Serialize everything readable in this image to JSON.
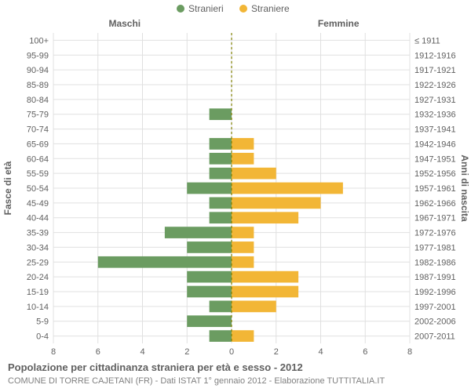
{
  "legend": {
    "male_label": "Stranieri",
    "female_label": "Straniere",
    "male_color": "#6b9c61",
    "female_color": "#f2b636"
  },
  "section_titles": {
    "left": "Maschi",
    "right": "Femmine"
  },
  "y_axis_left_title": "Fasce di età",
  "y_axis_right_title": "Anni di nascita",
  "caption_title": "Popolazione per cittadinanza straniera per età e sesso - 2012",
  "caption_sub": "COMUNE DI TORRE CAJETANI (FR) - Dati ISTAT 1° gennaio 2012 - Elaborazione TUTTITALIA.IT",
  "x_ticks": [
    8,
    6,
    4,
    2,
    0,
    2,
    4,
    6,
    8
  ],
  "x_max": 8,
  "chart": {
    "type": "population-pyramid",
    "background_color": "#ffffff",
    "grid_color": "#e0e0e0",
    "center_line_color": "#808000",
    "center_line_dash": "3,3",
    "bar_height_ratio": 0.78,
    "male_color": "#6b9c61",
    "female_color": "#f2b636",
    "rows": [
      {
        "age": "100+",
        "birth": "≤ 1911",
        "m": 0,
        "f": 0
      },
      {
        "age": "95-99",
        "birth": "1912-1916",
        "m": 0,
        "f": 0
      },
      {
        "age": "90-94",
        "birth": "1917-1921",
        "m": 0,
        "f": 0
      },
      {
        "age": "85-89",
        "birth": "1922-1926",
        "m": 0,
        "f": 0
      },
      {
        "age": "80-84",
        "birth": "1927-1931",
        "m": 0,
        "f": 0
      },
      {
        "age": "75-79",
        "birth": "1932-1936",
        "m": 1,
        "f": 0
      },
      {
        "age": "70-74",
        "birth": "1937-1941",
        "m": 0,
        "f": 0
      },
      {
        "age": "65-69",
        "birth": "1942-1946",
        "m": 1,
        "f": 1
      },
      {
        "age": "60-64",
        "birth": "1947-1951",
        "m": 1,
        "f": 1
      },
      {
        "age": "55-59",
        "birth": "1952-1956",
        "m": 1,
        "f": 2
      },
      {
        "age": "50-54",
        "birth": "1957-1961",
        "m": 2,
        "f": 5
      },
      {
        "age": "45-49",
        "birth": "1962-1966",
        "m": 1,
        "f": 4
      },
      {
        "age": "40-44",
        "birth": "1967-1971",
        "m": 1,
        "f": 3
      },
      {
        "age": "35-39",
        "birth": "1972-1976",
        "m": 3,
        "f": 1
      },
      {
        "age": "30-34",
        "birth": "1977-1981",
        "m": 2,
        "f": 1
      },
      {
        "age": "25-29",
        "birth": "1982-1986",
        "m": 6,
        "f": 1
      },
      {
        "age": "20-24",
        "birth": "1987-1991",
        "m": 2,
        "f": 3
      },
      {
        "age": "15-19",
        "birth": "1992-1996",
        "m": 2,
        "f": 3
      },
      {
        "age": "10-14",
        "birth": "1997-2001",
        "m": 1,
        "f": 2
      },
      {
        "age": "5-9",
        "birth": "2002-2006",
        "m": 2,
        "f": 0
      },
      {
        "age": "0-4",
        "birth": "2007-2011",
        "m": 1,
        "f": 1
      }
    ]
  }
}
